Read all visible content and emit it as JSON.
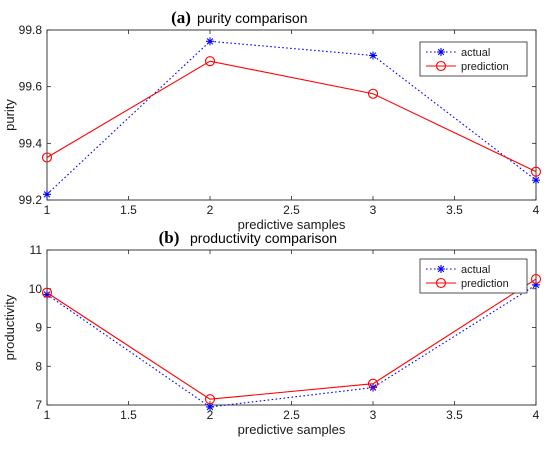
{
  "chart_data": [
    {
      "type": "line",
      "panel_label": "(a)",
      "title": "purity comparison",
      "xlabel": "predictive samples",
      "ylabel": "purity",
      "x": [
        1,
        2,
        3,
        4
      ],
      "xlim": [
        1,
        4
      ],
      "ylim": [
        99.2,
        99.8
      ],
      "xticks": [
        1,
        1.5,
        2,
        2.5,
        3,
        3.5,
        4
      ],
      "yticks": [
        99.2,
        99.4,
        99.6,
        99.8
      ],
      "grid": false,
      "legend_position": "top-right",
      "series": [
        {
          "name": "actual",
          "values": [
            99.22,
            99.76,
            99.71,
            99.27
          ],
          "color": "#0000ff",
          "line": "dotted",
          "marker": "asterisk"
        },
        {
          "name": "prediction",
          "values": [
            99.35,
            99.69,
            99.575,
            99.3
          ],
          "color": "#ff0000",
          "line": "solid",
          "marker": "circle"
        }
      ]
    },
    {
      "type": "line",
      "panel_label": "(b)",
      "title": "productivity comparison",
      "xlabel": "predictive samples",
      "ylabel": "productivity",
      "x": [
        1,
        2,
        3,
        4
      ],
      "xlim": [
        1,
        4
      ],
      "ylim": [
        7,
        11
      ],
      "xticks": [
        1,
        1.5,
        2,
        2.5,
        3,
        3.5,
        4
      ],
      "yticks": [
        7,
        8,
        9,
        10,
        11
      ],
      "grid": false,
      "legend_position": "top-right",
      "series": [
        {
          "name": "actual",
          "values": [
            9.85,
            6.95,
            7.45,
            10.1
          ],
          "color": "#0000ff",
          "line": "dotted",
          "marker": "asterisk"
        },
        {
          "name": "prediction",
          "values": [
            9.9,
            7.15,
            7.55,
            10.25
          ],
          "color": "#ff0000",
          "line": "solid",
          "marker": "circle"
        }
      ]
    }
  ]
}
